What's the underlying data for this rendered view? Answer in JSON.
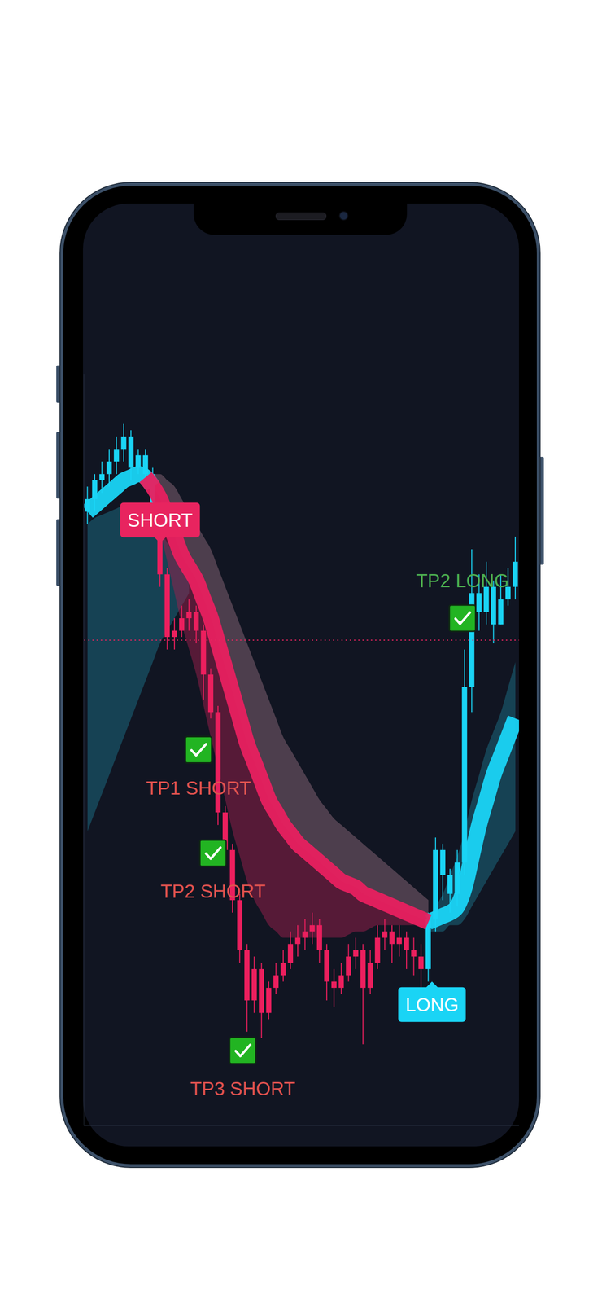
{
  "chart_data": {
    "type": "candlestick",
    "tick_labels": false,
    "grid": false,
    "xlim": [
      -0.5,
      59.5
    ],
    "ylim": [
      0,
      120
    ],
    "x": [
      0,
      1,
      2,
      3,
      4,
      5,
      6,
      7,
      8,
      9,
      10,
      11,
      12,
      13,
      14,
      15,
      16,
      17,
      18,
      19,
      20,
      21,
      22,
      23,
      24,
      25,
      26,
      27,
      28,
      29,
      30,
      31,
      32,
      33,
      34,
      35,
      36,
      37,
      38,
      39,
      40,
      41,
      42,
      43,
      44,
      45,
      46,
      47,
      48,
      49,
      50,
      51,
      52,
      53,
      54,
      55,
      56,
      57,
      58,
      59
    ],
    "open": [
      98,
      100,
      103,
      104,
      106,
      108,
      110,
      105,
      107,
      104,
      96,
      88,
      78,
      79,
      81,
      82,
      79,
      72,
      66,
      50,
      44,
      36,
      28,
      20,
      25,
      18,
      22,
      24,
      26,
      29,
      30,
      31,
      32,
      28,
      23,
      22,
      24,
      27,
      28,
      22,
      26,
      30,
      31,
      29,
      30,
      28,
      27,
      25,
      33,
      44,
      40,
      37,
      42,
      70,
      85,
      82,
      86,
      80,
      84,
      86
    ],
    "high": [
      102,
      104,
      106,
      108,
      110,
      112,
      111,
      108,
      108,
      105,
      97,
      89,
      81,
      83,
      84,
      83,
      80,
      73,
      67,
      51,
      45,
      37,
      29,
      27,
      26,
      23,
      26,
      28,
      31,
      32,
      33,
      34,
      33,
      29,
      25,
      26,
      29,
      30,
      29,
      28,
      32,
      33,
      32,
      32,
      31,
      30,
      29,
      34,
      46,
      45,
      41,
      44,
      76,
      92,
      88,
      90,
      87,
      88,
      89,
      94
    ],
    "low": [
      96,
      98,
      101,
      102,
      104,
      106,
      103,
      104,
      102,
      94,
      86,
      76,
      76,
      78,
      79,
      77,
      68,
      65,
      48,
      42,
      34,
      26,
      15,
      18,
      14,
      17,
      21,
      23,
      25,
      27,
      28,
      29,
      26,
      20,
      19,
      21,
      23,
      25,
      13,
      21,
      25,
      28,
      26,
      27,
      25,
      24,
      22,
      23,
      31,
      36,
      34,
      35,
      40,
      66,
      79,
      80,
      77,
      80,
      83,
      84
    ],
    "close": [
      100,
      103,
      104,
      106,
      108,
      110,
      105,
      107,
      104,
      96,
      88,
      78,
      79,
      81,
      82,
      79,
      72,
      66,
      50,
      44,
      36,
      28,
      20,
      25,
      18,
      22,
      24,
      26,
      29,
      30,
      31,
      32,
      28,
      23,
      22,
      24,
      27,
      28,
      22,
      26,
      30,
      31,
      29,
      30,
      28,
      27,
      25,
      33,
      44,
      40,
      37,
      42,
      70,
      85,
      82,
      86,
      80,
      84,
      86,
      90
    ],
    "colors": [
      "#1ad4f5",
      "#1ad4f5",
      "#1ad4f5",
      "#1ad4f5",
      "#1ad4f5",
      "#1ad4f5",
      "#1ad4f5",
      "#1ad4f5",
      "#1ad4f5",
      "#1ad4f5",
      "#ec1f5e",
      "#ec1f5e",
      "#ec1f5e",
      "#ec1f5e",
      "#ec1f5e",
      "#ec1f5e",
      "#ec1f5e",
      "#ec1f5e",
      "#ec1f5e",
      "#ec1f5e",
      "#ec1f5e",
      "#ec1f5e",
      "#ec1f5e",
      "#ec1f5e",
      "#ec1f5e",
      "#ec1f5e",
      "#ec1f5e",
      "#ec1f5e",
      "#ec1f5e",
      "#ec1f5e",
      "#ec1f5e",
      "#ec1f5e",
      "#ec1f5e",
      "#ec1f5e",
      "#ec1f5e",
      "#ec1f5e",
      "#ec1f5e",
      "#ec1f5e",
      "#ec1f5e",
      "#ec1f5e",
      "#ec1f5e",
      "#ec1f5e",
      "#ec1f5e",
      "#ec1f5e",
      "#ec1f5e",
      "#ec1f5e",
      "#ec1f5e",
      "#1ad4f5",
      "#1ad4f5",
      "#1ad4f5",
      "#1ad4f5",
      "#1ad4f5",
      "#1ad4f5",
      "#1ad4f5",
      "#1ad4f5",
      "#1ad4f5",
      "#1ad4f5",
      "#1ad4f5",
      "#1ad4f5",
      "#1ad4f5"
    ],
    "bands": [
      {
        "color": "#1b6f86",
        "upper": [
          96,
          97,
          97.5,
          98,
          98.5,
          99,
          99,
          98.5,
          98,
          97,
          95,
          93,
          91,
          89,
          87,
          null,
          null,
          null,
          null,
          null,
          null,
          null,
          null,
          null,
          null,
          null,
          null,
          null,
          null,
          null,
          null,
          null,
          null,
          null,
          null,
          null,
          null,
          null,
          null,
          null,
          null,
          null,
          null,
          null,
          null,
          null,
          null,
          null,
          null,
          null,
          null,
          null,
          null,
          null,
          null,
          null,
          null,
          null,
          null,
          null
        ],
        "lower": [
          47,
          50,
          53,
          56,
          59,
          62,
          65,
          68,
          71,
          74,
          77,
          79,
          81,
          83,
          85,
          null,
          null,
          null,
          null,
          null,
          null,
          null,
          null,
          null,
          null,
          null,
          null,
          null,
          null,
          null,
          null,
          null,
          null,
          null,
          null,
          null,
          null,
          null,
          null,
          null,
          null,
          null,
          null,
          null,
          null,
          null,
          null,
          null,
          null,
          null,
          null,
          null,
          null,
          null,
          null,
          null,
          null,
          null,
          null,
          null
        ]
      },
      {
        "color": "#8a6878",
        "upper": [
          null,
          null,
          null,
          null,
          null,
          null,
          null,
          null,
          null,
          104,
          104,
          103,
          102,
          100,
          98,
          96,
          94,
          92,
          89,
          86,
          83,
          80,
          77,
          74,
          71,
          68,
          65,
          62,
          60,
          58,
          56,
          54,
          52,
          50.5,
          49,
          48,
          47,
          46,
          45,
          44,
          43,
          42,
          41,
          40,
          39,
          38,
          37,
          36,
          null,
          null,
          null,
          null,
          null,
          null,
          null,
          null,
          null,
          null,
          null,
          null
        ],
        "lower": [
          null,
          null,
          null,
          null,
          null,
          null,
          null,
          null,
          null,
          102,
          100,
          97,
          94,
          91,
          89,
          87,
          84,
          81,
          77,
          73,
          69,
          65,
          61,
          58,
          55,
          52,
          50,
          48,
          46.5,
          45,
          44,
          43,
          42,
          41,
          40,
          39,
          38.5,
          38,
          37,
          36.5,
          36,
          35.5,
          35,
          34.5,
          34,
          33.5,
          33,
          32.5,
          null,
          null,
          null,
          null,
          null,
          null,
          null,
          null,
          null,
          null,
          null,
          null
        ]
      },
      {
        "color": "#9c1f4c",
        "upper": [
          null,
          null,
          null,
          null,
          null,
          null,
          null,
          null,
          null,
          102,
          100,
          97,
          94,
          91,
          89,
          87,
          84,
          81,
          77,
          73,
          69,
          65,
          61,
          58,
          55,
          52,
          50,
          48,
          46.5,
          45,
          44,
          43,
          42,
          41,
          40,
          39,
          38.5,
          38,
          37,
          36.5,
          36,
          35.5,
          35,
          34.5,
          34,
          33.5,
          33,
          32.5,
          null,
          null,
          null,
          null,
          null,
          null,
          null,
          null,
          null,
          null,
          null,
          null
        ],
        "lower": [
          null,
          null,
          null,
          null,
          null,
          null,
          null,
          null,
          null,
          100,
          95,
          90,
          85,
          80,
          76,
          72,
          67,
          62,
          57,
          52,
          47,
          43,
          39,
          36,
          34,
          32,
          31,
          30,
          30,
          30,
          30,
          30,
          30,
          30,
          30,
          30,
          30.5,
          31,
          31,
          31.5,
          32,
          32,
          32,
          32,
          32,
          32,
          32,
          32,
          null,
          null,
          null,
          null,
          null,
          null,
          null,
          null,
          null,
          null,
          null,
          null
        ]
      },
      {
        "color": "#1b6f86",
        "upper": [
          null,
          null,
          null,
          null,
          null,
          null,
          null,
          null,
          null,
          null,
          null,
          null,
          null,
          null,
          null,
          null,
          null,
          null,
          null,
          null,
          null,
          null,
          null,
          null,
          null,
          null,
          null,
          null,
          null,
          null,
          null,
          null,
          null,
          null,
          null,
          null,
          null,
          null,
          null,
          null,
          null,
          null,
          null,
          null,
          null,
          null,
          null,
          33,
          35,
          37,
          40,
          43,
          47,
          52,
          56,
          60,
          63,
          66,
          70,
          74
        ],
        "lower": [
          null,
          null,
          null,
          null,
          null,
          null,
          null,
          null,
          null,
          null,
          null,
          null,
          null,
          null,
          null,
          null,
          null,
          null,
          null,
          null,
          null,
          null,
          null,
          null,
          null,
          null,
          null,
          null,
          null,
          null,
          null,
          null,
          null,
          null,
          null,
          null,
          null,
          null,
          null,
          null,
          null,
          null,
          null,
          null,
          null,
          null,
          null,
          31,
          31,
          31,
          32,
          32,
          33,
          35,
          37,
          39,
          41,
          43,
          45,
          47
        ]
      }
    ],
    "series": [
      {
        "type": "line",
        "color": "#1ad4f5",
        "values": [
          98,
          99,
          100,
          101,
          102,
          103,
          103.5,
          104,
          103.5,
          102,
          null,
          null,
          null,
          null,
          null,
          null,
          null,
          null,
          null,
          null,
          null,
          null,
          null,
          null,
          null,
          null,
          null,
          null,
          null,
          null,
          null,
          null,
          null,
          null,
          null,
          null,
          null,
          null,
          null,
          null,
          null,
          null,
          null,
          null,
          null,
          null,
          null,
          32.5,
          33,
          33.5,
          34,
          35,
          38,
          43,
          48,
          52,
          56,
          59,
          62,
          65
        ]
      },
      {
        "type": "line",
        "color": "#e8205f",
        "values": [
          null,
          null,
          null,
          null,
          null,
          null,
          null,
          null,
          103.5,
          102,
          100,
          97,
          94,
          91,
          89,
          87,
          84,
          81,
          77,
          73,
          69,
          65,
          61,
          58,
          55,
          52,
          50,
          48,
          46.5,
          45,
          44,
          43,
          42,
          41,
          40,
          39,
          38.5,
          38,
          37,
          36.5,
          36,
          35.5,
          35,
          34.5,
          34,
          33.5,
          33,
          32.5,
          null,
          null,
          null,
          null,
          null,
          null,
          null,
          null,
          null,
          null,
          null,
          null
        ]
      }
    ],
    "hlines": [
      {
        "value": 77.5,
        "color": "#e8245f",
        "line_style": "dotted"
      }
    ],
    "annotations": [
      {
        "text": "SHORT",
        "x": 10,
        "y": 93,
        "color": "#e8245f",
        "marker": "flag_down"
      },
      {
        "text": "TP1 SHORT",
        "x": 15.3,
        "y": 60,
        "color": "#e0524f",
        "marker": "check_label_below"
      },
      {
        "text": "TP2 SHORT",
        "x": 17.3,
        "y": 43.5,
        "color": "#e0524f",
        "marker": "check_label_below"
      },
      {
        "text": "TP3 SHORT",
        "x": 21.4,
        "y": 12,
        "color": "#e0524f",
        "marker": "check_label_below"
      },
      {
        "text": "LONG",
        "x": 47.5,
        "y": 23,
        "color": "#1ad4f5",
        "marker": "flag_up"
      },
      {
        "text": "TP2 LONG",
        "x": 51.7,
        "y": 81,
        "color": "#4caf50",
        "marker": "check_label_above"
      }
    ]
  }
}
